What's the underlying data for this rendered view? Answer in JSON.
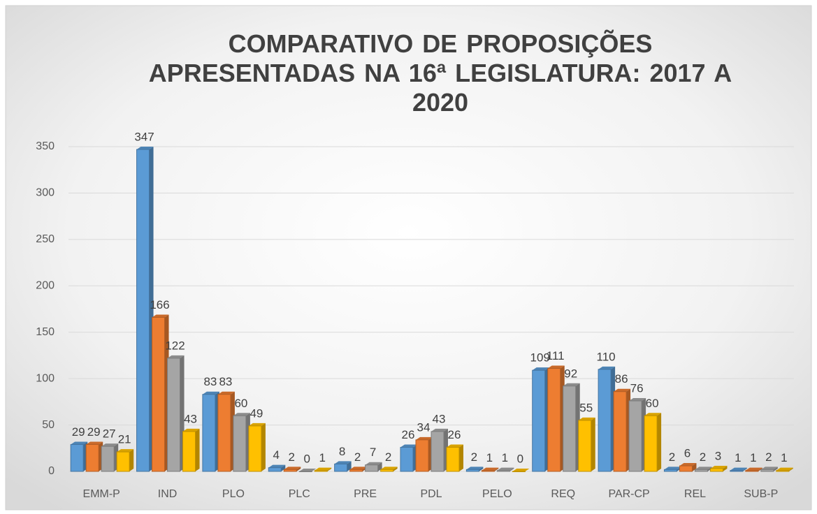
{
  "chart_data": {
    "type": "bar",
    "title": "COMPARATIVO  DE PROPOSIÇÕES APRESENTADAS  NA 16ª LEGISLATURA: 2017 A 2020",
    "categories": [
      "EMM-P",
      "IND",
      "PLO",
      "PLC",
      "PRE",
      "PDL",
      "PELO",
      "REQ",
      "PAR-CP",
      "REL",
      "SUB-P"
    ],
    "series": [
      {
        "color": "#5b9bd5",
        "values": [
          29,
          347,
          83,
          4,
          8,
          26,
          2,
          109,
          110,
          2,
          1
        ]
      },
      {
        "color": "#ed7d31",
        "values": [
          29,
          166,
          83,
          2,
          2,
          34,
          1,
          111,
          86,
          6,
          1
        ]
      },
      {
        "color": "#a5a5a5",
        "values": [
          27,
          122,
          60,
          0,
          7,
          43,
          1,
          92,
          76,
          2,
          2
        ]
      },
      {
        "color": "#ffc000",
        "values": [
          21,
          43,
          49,
          1,
          2,
          26,
          0,
          55,
          60,
          3,
          1
        ]
      }
    ],
    "ylim": [
      0,
      350
    ],
    "yticks": [
      0,
      50,
      100,
      150,
      200,
      250,
      300,
      350
    ],
    "grid": true
  }
}
